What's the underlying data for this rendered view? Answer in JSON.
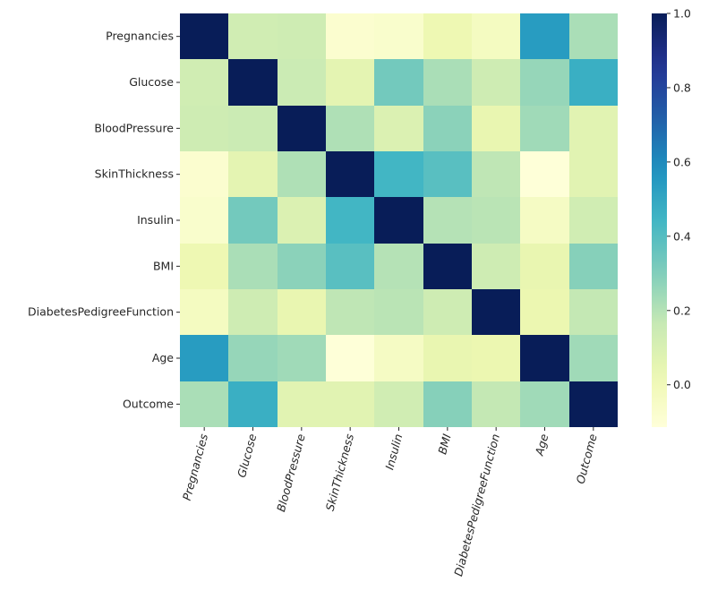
{
  "chart_data": {
    "type": "heatmap",
    "title": "",
    "xlabel": "",
    "ylabel": "",
    "row_labels": [
      "Pregnancies",
      "Glucose",
      "BloodPressure",
      "SkinThickness",
      "Insulin",
      "BMI",
      "DiabetesPedigreeFunction",
      "Age",
      "Outcome"
    ],
    "col_labels": [
      "Pregnancies",
      "Glucose",
      "BloodPressure",
      "SkinThickness",
      "Insulin",
      "BMI",
      "DiabetesPedigreeFunction",
      "Age",
      "Outcome"
    ],
    "values": [
      [
        1.0,
        0.13,
        0.14,
        -0.08,
        -0.07,
        0.02,
        -0.03,
        0.54,
        0.22
      ],
      [
        0.13,
        1.0,
        0.15,
        0.06,
        0.33,
        0.22,
        0.14,
        0.26,
        0.47
      ],
      [
        0.14,
        0.15,
        1.0,
        0.21,
        0.09,
        0.28,
        0.04,
        0.24,
        0.07
      ],
      [
        -0.08,
        0.06,
        0.21,
        1.0,
        0.44,
        0.39,
        0.18,
        -0.11,
        0.07
      ],
      [
        -0.07,
        0.33,
        0.09,
        0.44,
        1.0,
        0.2,
        0.19,
        -0.04,
        0.13
      ],
      [
        0.02,
        0.22,
        0.28,
        0.39,
        0.2,
        1.0,
        0.14,
        0.04,
        0.29
      ],
      [
        -0.03,
        0.14,
        0.04,
        0.18,
        0.19,
        0.14,
        1.0,
        0.03,
        0.17
      ],
      [
        0.54,
        0.26,
        0.24,
        -0.11,
        -0.04,
        0.04,
        0.03,
        1.0,
        0.24
      ],
      [
        0.22,
        0.47,
        0.07,
        0.07,
        0.13,
        0.29,
        0.17,
        0.24,
        1.0
      ]
    ],
    "colormap": "YlGnBu",
    "colorbar": {
      "range": [
        -0.114,
        1.0
      ],
      "ticks": [
        0.0,
        0.2,
        0.4,
        0.6,
        0.8,
        1.0
      ],
      "tick_labels": [
        "0.0",
        "0.2",
        "0.4",
        "0.6",
        "0.8",
        "1.0"
      ],
      "placement": "right"
    },
    "xtick_rotation_deg": 75,
    "grid": false
  }
}
